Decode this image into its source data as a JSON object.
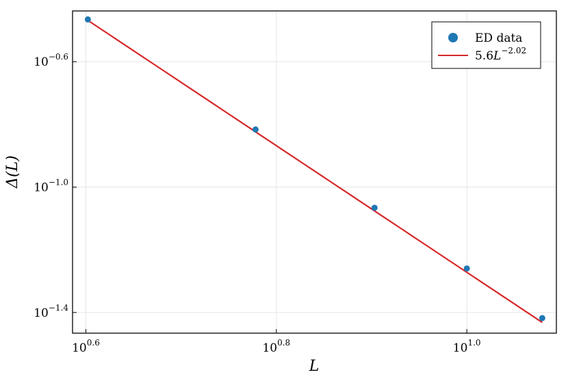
{
  "chart_data": {
    "type": "scatter",
    "x_scale": "log10",
    "y_scale": "log10",
    "xlabel": "L",
    "ylabel": "Δ(L)",
    "xlim_log10": [
      0.586,
      1.094
    ],
    "ylim_log10": [
      -1.466,
      -0.438
    ],
    "x_ticks": [
      {
        "base": "10",
        "exp": "0.6",
        "log10": 0.6
      },
      {
        "base": "10",
        "exp": "0.8",
        "log10": 0.8
      },
      {
        "base": "10",
        "exp": "1.0",
        "log10": 1.0
      }
    ],
    "y_ticks": [
      {
        "base": "10",
        "exp": "−0.6",
        "log10": -0.6
      },
      {
        "base": "10",
        "exp": "−1.0",
        "log10": -1.0
      },
      {
        "base": "10",
        "exp": "−1.4",
        "log10": -1.4
      }
    ],
    "grid": true,
    "legend_position": "top-right",
    "series": [
      {
        "name": "ED data",
        "kind": "scatter",
        "color": "#1f77b4",
        "x": [
          4,
          6,
          8,
          10,
          12
        ],
        "y": [
          0.3427,
          0.1527,
          0.0859,
          0.055,
          0.0382
        ]
      },
      {
        "name": "5.6L^−2.02",
        "kind": "line",
        "color": "#d62728",
        "coefficient": 5.6,
        "exponent": -2.02,
        "x_range": [
          4,
          12
        ]
      }
    ],
    "legend": {
      "scatter_label": "ED data",
      "line_label_prefix": "5.6",
      "line_label_var": "L",
      "line_label_exp": "−2.02"
    }
  }
}
